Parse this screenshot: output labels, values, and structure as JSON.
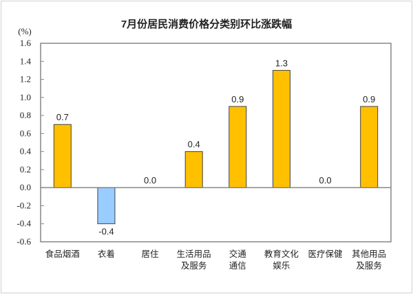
{
  "chart_data": {
    "type": "bar",
    "title": "7月份居民消费价格分类别环比涨跌幅",
    "ylabel": "(%)",
    "categories": [
      [
        "食品烟酒"
      ],
      [
        "衣着"
      ],
      [
        "居住"
      ],
      [
        "生活用品",
        "及服务"
      ],
      [
        "交通",
        "通信"
      ],
      [
        "教育文化",
        "娱乐"
      ],
      [
        "医疗保健"
      ],
      [
        "其他用品",
        "及服务"
      ]
    ],
    "values": [
      0.7,
      -0.4,
      0.0,
      0.4,
      0.9,
      1.3,
      0.0,
      0.9
    ],
    "data_labels": [
      "0.7",
      "-0.4",
      "0.0",
      "0.4",
      "0.9",
      "1.3",
      "0.0",
      "0.9"
    ],
    "ylim": [
      -0.6,
      1.6
    ],
    "yticks": [
      "1.6",
      "1.4",
      "1.2",
      "1.0",
      "0.8",
      "0.6",
      "0.4",
      "0.2",
      "0.0",
      "-0.2",
      "-0.4",
      "-0.6"
    ],
    "grid": false,
    "colors": {
      "positive": "#FFC000",
      "negative": "#99CCFF",
      "bar_edge": "#404040",
      "axis": "#868686"
    }
  }
}
